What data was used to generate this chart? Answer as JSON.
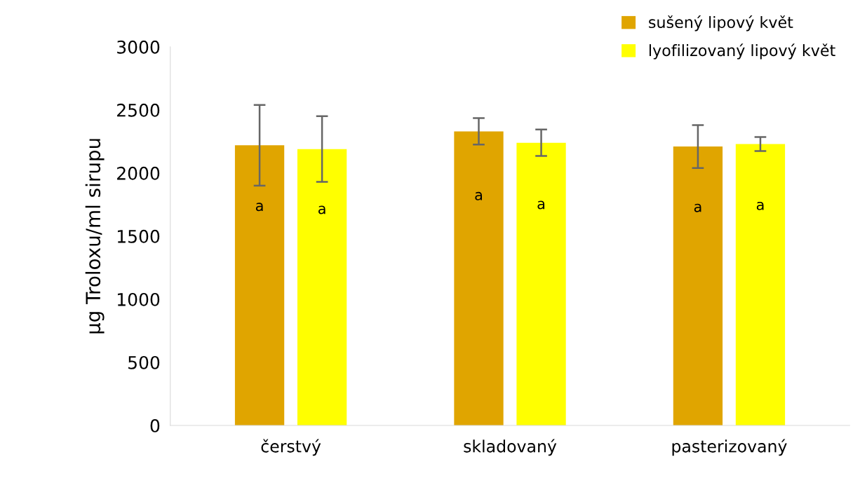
{
  "chart_data": {
    "type": "bar",
    "ylabel": "µg Troloxu/ml sirupu",
    "categories": [
      "čerstvý",
      "skladovaný",
      "pasterizovaný"
    ],
    "series": [
      {
        "name": "sušený lipový květ",
        "color": "#e0a500",
        "values": [
          2220,
          2330,
          2210
        ],
        "errors": [
          320,
          105,
          170
        ]
      },
      {
        "name": "lyofilizovaný lipový květ",
        "color": "#ffff00",
        "values": [
          2190,
          2240,
          2230
        ],
        "errors": [
          260,
          105,
          55
        ]
      }
    ],
    "ylim": [
      0,
      3000
    ],
    "yticks": [
      0,
      500,
      1000,
      1500,
      2000,
      2500,
      3000
    ],
    "annotations": [
      "a",
      "a",
      "a",
      "a",
      "a",
      "a"
    ],
    "grid": false,
    "legend": "top right"
  }
}
